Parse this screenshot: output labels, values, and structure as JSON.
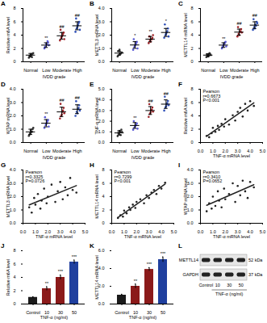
{
  "chart_data": [
    {
      "panel": "A",
      "type": "strip",
      "categories": [
        "Normal",
        "Low",
        "Moderate",
        "High"
      ],
      "xlabel": "IVDD grade",
      "ylabel": "Relative m6A level",
      "points": [
        [
          0.6,
          0.8,
          1.0,
          1.2,
          0.9,
          1.1,
          0.7,
          1.3
        ],
        [
          2.0,
          2.3,
          2.6,
          2.9,
          2.2,
          2.7,
          3.1,
          2.5
        ],
        [
          3.2,
          3.6,
          4.0,
          4.4,
          4.8,
          3.8,
          4.2,
          3.4
        ],
        [
          4.5,
          5.0,
          5.5,
          6.0,
          6.5,
          5.2,
          5.8,
          4.8
        ]
      ],
      "means": [
        1.0,
        2.5,
        3.9,
        5.4
      ],
      "sd": [
        0.25,
        0.35,
        0.5,
        0.6
      ],
      "annotations": [
        null,
        "**",
        "##",
        "##"
      ],
      "colors": [
        "#333333",
        "#5b5bd6",
        "#a0262b",
        "#2e4fb8"
      ],
      "ylim": [
        0,
        8
      ],
      "yticks": [
        0,
        2,
        4,
        6,
        8
      ]
    },
    {
      "panel": "B",
      "type": "strip",
      "categories": [
        "Normal",
        "Low",
        "Moderate",
        "High"
      ],
      "xlabel": "IVDD grade",
      "ylabel": "METTL3 mRNA level",
      "points": [
        [
          0.4,
          0.5,
          0.6,
          0.7,
          0.8,
          0.9,
          0.6,
          0.7
        ],
        [
          0.9,
          1.1,
          1.3,
          1.5,
          1.7,
          1.2,
          1.4,
          1.0
        ],
        [
          1.4,
          1.6,
          1.7,
          1.8,
          1.9,
          1.5,
          1.7,
          2.0
        ],
        [
          1.8,
          2.0,
          2.2,
          2.5,
          2.8,
          2.1,
          2.3,
          1.9
        ]
      ],
      "means": [
        0.65,
        1.26,
        1.7,
        2.2
      ],
      "sd": [
        0.15,
        0.25,
        0.2,
        0.3
      ],
      "annotations": [
        null,
        "*",
        "**",
        "*"
      ],
      "colors": [
        "#333333",
        "#5b5bd6",
        "#a0262b",
        "#2e4fb8"
      ],
      "ylim": [
        0,
        4
      ],
      "yticks": [
        0,
        1,
        2,
        3,
        4
      ]
    },
    {
      "panel": "C",
      "type": "strip",
      "categories": [
        "Normal",
        "Low",
        "Moderate",
        "High"
      ],
      "xlabel": "IVDD grade",
      "ylabel": "METTL14 mRNA level",
      "points": [
        [
          0.7,
          0.9,
          1.0,
          1.2,
          1.1,
          0.8,
          1.3,
          1.0
        ],
        [
          2.0,
          2.4,
          2.7,
          3.0,
          2.2,
          2.6,
          2.9,
          2.3
        ],
        [
          3.8,
          4.2,
          4.5,
          4.9,
          5.2,
          4.0,
          4.6,
          4.4
        ],
        [
          4.8,
          5.2,
          5.6,
          6.0,
          6.4,
          5.0,
          5.4,
          5.8
        ]
      ],
      "means": [
        1.0,
        2.5,
        4.45,
        5.5
      ],
      "sd": [
        0.2,
        0.35,
        0.45,
        0.5
      ],
      "annotations": [
        null,
        "**",
        "##",
        "##"
      ],
      "colors": [
        "#333333",
        "#5b5bd6",
        "#a0262b",
        "#2e4fb8"
      ],
      "ylim": [
        0,
        8
      ],
      "yticks": [
        0,
        2,
        4,
        6,
        8
      ]
    },
    {
      "panel": "D",
      "type": "strip",
      "categories": [
        "Normal",
        "Low",
        "Moderate",
        "High"
      ],
      "xlabel": "IVDD grade",
      "ylabel": "WTAP mRNA level",
      "points": [
        [
          0.5,
          0.7,
          0.8,
          1.0,
          0.6,
          0.9,
          0.8,
          1.1
        ],
        [
          1.1,
          1.3,
          1.5,
          1.7,
          1.9,
          1.4,
          1.6,
          1.2
        ],
        [
          1.8,
          2.0,
          2.3,
          2.6,
          2.9,
          2.1,
          2.4,
          2.2
        ],
        [
          2.0,
          2.3,
          2.5,
          2.8,
          3.1,
          2.2,
          2.6,
          2.4
        ]
      ],
      "means": [
        0.8,
        1.45,
        2.3,
        2.5
      ],
      "sd": [
        0.2,
        0.27,
        0.35,
        0.33
      ],
      "annotations": [
        null,
        "**",
        "##",
        "##"
      ],
      "colors": [
        "#333333",
        "#5b5bd6",
        "#a0262b",
        "#2e4fb8"
      ],
      "ylim": [
        0,
        4
      ],
      "yticks": [
        0,
        1,
        2,
        3,
        4
      ]
    },
    {
      "panel": "E",
      "type": "strip",
      "categories": [
        "Normal",
        "Low",
        "Moderate",
        "High"
      ],
      "xlabel": "IVDD grade",
      "ylabel": "TNF-α mRNA level",
      "points": [
        [
          0.6,
          0.8,
          1.0,
          1.2,
          0.9,
          1.1,
          0.7,
          1.0
        ],
        [
          1.2,
          1.4,
          1.6,
          1.8,
          2.0,
          1.5,
          1.7,
          1.3
        ],
        [
          2.4,
          2.7,
          3.0,
          3.3,
          3.6,
          2.8,
          3.1,
          2.9
        ],
        [
          3.0,
          3.3,
          3.6,
          3.9,
          4.3,
          3.4,
          3.7,
          3.5
        ]
      ],
      "means": [
        0.9,
        1.6,
        3.0,
        3.6
      ],
      "sd": [
        0.2,
        0.27,
        0.37,
        0.4
      ],
      "annotations": [
        null,
        "**",
        "##",
        "##"
      ],
      "colors": [
        "#333333",
        "#5b5bd6",
        "#a0262b",
        "#2e4fb8"
      ],
      "ylim": [
        0,
        5
      ],
      "yticks": [
        0,
        1,
        2,
        3,
        4,
        5
      ]
    },
    {
      "panel": "F",
      "type": "scatter",
      "xlabel": "TNF-α mRNA level",
      "ylabel": "Relative m6A level",
      "stats": [
        "Pearson",
        "r=0.6673",
        "P<0.001"
      ],
      "color": "#222222",
      "x": [
        0.5,
        0.7,
        0.9,
        1.0,
        1.2,
        1.4,
        1.5,
        1.7,
        1.9,
        2.0,
        2.3,
        2.6,
        2.8,
        3.0,
        3.2,
        3.4,
        3.6,
        3.8,
        4.0,
        4.3
      ],
      "y": [
        1.0,
        0.8,
        1.4,
        2.2,
        1.6,
        2.5,
        1.9,
        2.8,
        2.4,
        3.5,
        2.7,
        4.1,
        3.3,
        4.6,
        5.2,
        3.9,
        5.8,
        4.8,
        6.2,
        5.5
      ],
      "xlim": [
        0,
        5
      ],
      "xticks": [
        0,
        1,
        2,
        3,
        4,
        5
      ],
      "ylim": [
        0,
        8
      ],
      "yticks": [
        0,
        2,
        4,
        6,
        8
      ]
    },
    {
      "panel": "G",
      "type": "scatter",
      "xlabel": "TNF-α mRNA level",
      "ylabel": "METTL3 mRNA level",
      "stats": [
        "Pearson",
        "r=0.3325",
        "P=0.0726"
      ],
      "color": "#222222",
      "x": [
        0.5,
        0.7,
        0.9,
        1.0,
        1.2,
        1.4,
        1.5,
        1.7,
        1.9,
        2.0,
        2.3,
        2.6,
        2.8,
        3.0,
        3.2,
        3.4,
        3.6,
        3.8,
        4.0,
        4.3
      ],
      "y": [
        1.2,
        0.8,
        1.9,
        1.4,
        2.2,
        1.1,
        1.7,
        2.6,
        1.5,
        2.0,
        2.9,
        1.6,
        2.4,
        3.1,
        1.8,
        2.7,
        2.1,
        3.4,
        2.5,
        2.3
      ],
      "xlim": [
        0,
        5
      ],
      "xticks": [
        0,
        1,
        2,
        3,
        4,
        5
      ],
      "ylim": [
        0,
        4
      ],
      "yticks": [
        0,
        1,
        2,
        3,
        4
      ]
    },
    {
      "panel": "H",
      "type": "scatter",
      "xlabel": "TNF-α mRNA level",
      "ylabel": "METTL14 mRNA level",
      "stats": [
        "Pearson",
        "r=0.7299",
        "P<0.001"
      ],
      "color": "#222222",
      "x": [
        0.5,
        0.7,
        0.9,
        1.0,
        1.2,
        1.4,
        1.5,
        1.7,
        1.9,
        2.0,
        2.3,
        2.6,
        2.8,
        3.0,
        3.2,
        3.4,
        3.6,
        3.8,
        4.0,
        4.3
      ],
      "y": [
        0.8,
        1.2,
        1.0,
        1.9,
        1.5,
        2.4,
        2.0,
        2.8,
        2.3,
        3.2,
        3.6,
        3.0,
        4.2,
        3.8,
        4.6,
        5.0,
        4.4,
        5.6,
        5.2,
        6.1
      ],
      "xlim": [
        0,
        5
      ],
      "xticks": [
        0,
        1,
        2,
        3,
        4,
        5
      ],
      "ylim": [
        0,
        8
      ],
      "yticks": [
        0,
        2,
        4,
        6,
        8
      ]
    },
    {
      "panel": "I",
      "type": "scatter",
      "xlabel": "TNF-α mRNA level",
      "ylabel": "WTAP mRNA level",
      "stats": [
        "Pearson",
        "r=0.3410",
        "P=0.0652"
      ],
      "color": "#222222",
      "x": [
        0.5,
        0.7,
        0.9,
        1.0,
        1.2,
        1.4,
        1.5,
        1.7,
        1.9,
        2.0,
        2.3,
        2.6,
        2.8,
        3.0,
        3.2,
        3.4,
        3.6,
        3.8,
        4.0,
        4.3
      ],
      "y": [
        0.9,
        1.5,
        1.1,
        2.0,
        1.3,
        2.4,
        1.7,
        1.2,
        2.6,
        1.8,
        2.2,
        3.0,
        1.6,
        2.8,
        2.1,
        3.2,
        2.4,
        1.9,
        3.1,
        2.7
      ],
      "xlim": [
        0,
        5
      ],
      "xticks": [
        0,
        1,
        2,
        3,
        4,
        5
      ],
      "ylim": [
        0,
        4
      ],
      "yticks": [
        0,
        1,
        2,
        3,
        4
      ]
    },
    {
      "panel": "J",
      "type": "bar",
      "xlabel": "TNF-α (ng/ml)",
      "ylabel": "Relative m6A level",
      "categories": [
        "Control",
        "10",
        "30",
        "50"
      ],
      "values": [
        1.0,
        2.3,
        4.0,
        6.3
      ],
      "errors": [
        0.1,
        0.3,
        0.35,
        0.3
      ],
      "annotations": [
        null,
        "**",
        "***",
        "***"
      ],
      "colors": [
        "#1a1a1a",
        "#8b1a1a",
        "#8b1a1a",
        "#1f3f9e"
      ],
      "ylim": [
        0,
        8
      ],
      "yticks": [
        0,
        2,
        4,
        6,
        8
      ]
    },
    {
      "panel": "K",
      "type": "bar",
      "xlabel": "TNF-α (ng/ml)",
      "ylabel": "METTL14 mRNA level",
      "categories": [
        "Control",
        "10",
        "30",
        "50"
      ],
      "values": [
        1.0,
        2.0,
        3.9,
        5.0
      ],
      "errors": [
        0.1,
        0.25,
        0.2,
        0.3
      ],
      "annotations": [
        null,
        "**",
        "***",
        "***"
      ],
      "colors": [
        "#1a1a1a",
        "#8b1a1a",
        "#8b1a1a",
        "#1f3f9e"
      ],
      "ylim": [
        0,
        6
      ],
      "yticks": [
        0,
        2,
        4,
        6
      ]
    }
  ],
  "blot": {
    "panel": "L",
    "bands": [
      "METTL14",
      "GAPDH"
    ],
    "sizes": [
      "52 kDa",
      "37 kDa"
    ],
    "lanes": [
      "Control",
      "10",
      "30",
      "50"
    ],
    "xlabel": "TNF-α (ng/ml)"
  }
}
